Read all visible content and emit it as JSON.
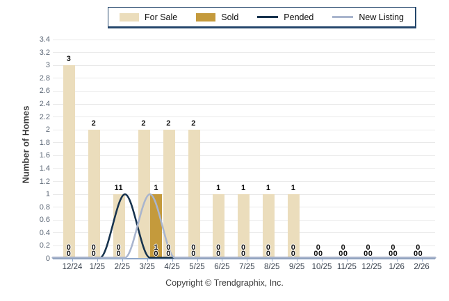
{
  "legend": {
    "items": [
      {
        "label": "For Sale",
        "swatch": "rect",
        "color": "#ebddbc"
      },
      {
        "label": "Sold",
        "swatch": "rect",
        "color": "#c49a3c"
      },
      {
        "label": "Pended",
        "swatch": "line",
        "color": "#17334e"
      },
      {
        "label": "New Listing",
        "swatch": "line",
        "color": "#a9b5ce"
      }
    ]
  },
  "colors": {
    "for_sale": "#ebddbc",
    "sold": "#c49a3c",
    "pended": "#17334e",
    "new_listing": "#a9b5ce",
    "grid": "#e9e9e9",
    "axis": "#8ea6c8"
  },
  "chart_data": {
    "type": "bar",
    "title": "",
    "ylabel": "Number of Homes",
    "xlabel": "",
    "ylim": [
      0,
      3.4
    ],
    "ytick_step": 0.2,
    "grid": true,
    "legend_position": "top",
    "categories": [
      "12/24",
      "1/25",
      "2/25",
      "3/25",
      "4/25",
      "5/25",
      "6/25",
      "7/25",
      "8/25",
      "9/25",
      "10/25",
      "11/25",
      "12/25",
      "1/26",
      "2/26"
    ],
    "series": [
      {
        "name": "For Sale",
        "type": "bar",
        "color": "#ebddbc",
        "values": [
          3,
          2,
          1,
          2,
          2,
          2,
          1,
          1,
          1,
          1,
          0,
          0,
          0,
          0,
          0
        ]
      },
      {
        "name": "Sold",
        "type": "bar",
        "color": "#c49a3c",
        "values": [
          0,
          0,
          0,
          1,
          0,
          0,
          0,
          0,
          0,
          0,
          0,
          0,
          0,
          0,
          0
        ]
      },
      {
        "name": "Pended",
        "type": "line",
        "color": "#17334e",
        "values": [
          0,
          0,
          1,
          0,
          0,
          0,
          0,
          0,
          0,
          0,
          0,
          0,
          0,
          0,
          0
        ]
      },
      {
        "name": "New Listing",
        "type": "line",
        "color": "#a9b5ce",
        "values": [
          0,
          0,
          0,
          1,
          0,
          0,
          0,
          0,
          0,
          0,
          0,
          0,
          0,
          0,
          0
        ]
      }
    ],
    "point_labels": [
      {
        "top": "3",
        "base": [
          "0",
          "0"
        ]
      },
      {
        "top": "2",
        "base": [
          "0",
          "0"
        ]
      },
      {
        "top": "11",
        "base": [
          "0",
          "0"
        ]
      },
      {
        "top": "2",
        "sold": "1",
        "base": [
          "1",
          "0"
        ],
        "base_side": "right"
      },
      {
        "top": "2",
        "base": [
          "0",
          "0"
        ]
      },
      {
        "top": "2",
        "base": [
          "0",
          "0"
        ]
      },
      {
        "top": "1",
        "base": [
          "0",
          "0"
        ]
      },
      {
        "top": "1",
        "base": [
          "0",
          "0"
        ]
      },
      {
        "top": "1",
        "base": [
          "0",
          "0"
        ]
      },
      {
        "top": "1",
        "base": [
          "0",
          "0"
        ]
      },
      {
        "top": "",
        "base": [
          "0",
          "00"
        ]
      },
      {
        "top": "",
        "base": [
          "0",
          "00"
        ]
      },
      {
        "top": "",
        "base": [
          "0",
          "00"
        ]
      },
      {
        "top": "",
        "base": [
          "0",
          "00"
        ]
      },
      {
        "top": "",
        "base": [
          "0",
          "00"
        ]
      }
    ]
  },
  "footer": {
    "copyright": "Copyright © Trendgraphix, Inc."
  }
}
